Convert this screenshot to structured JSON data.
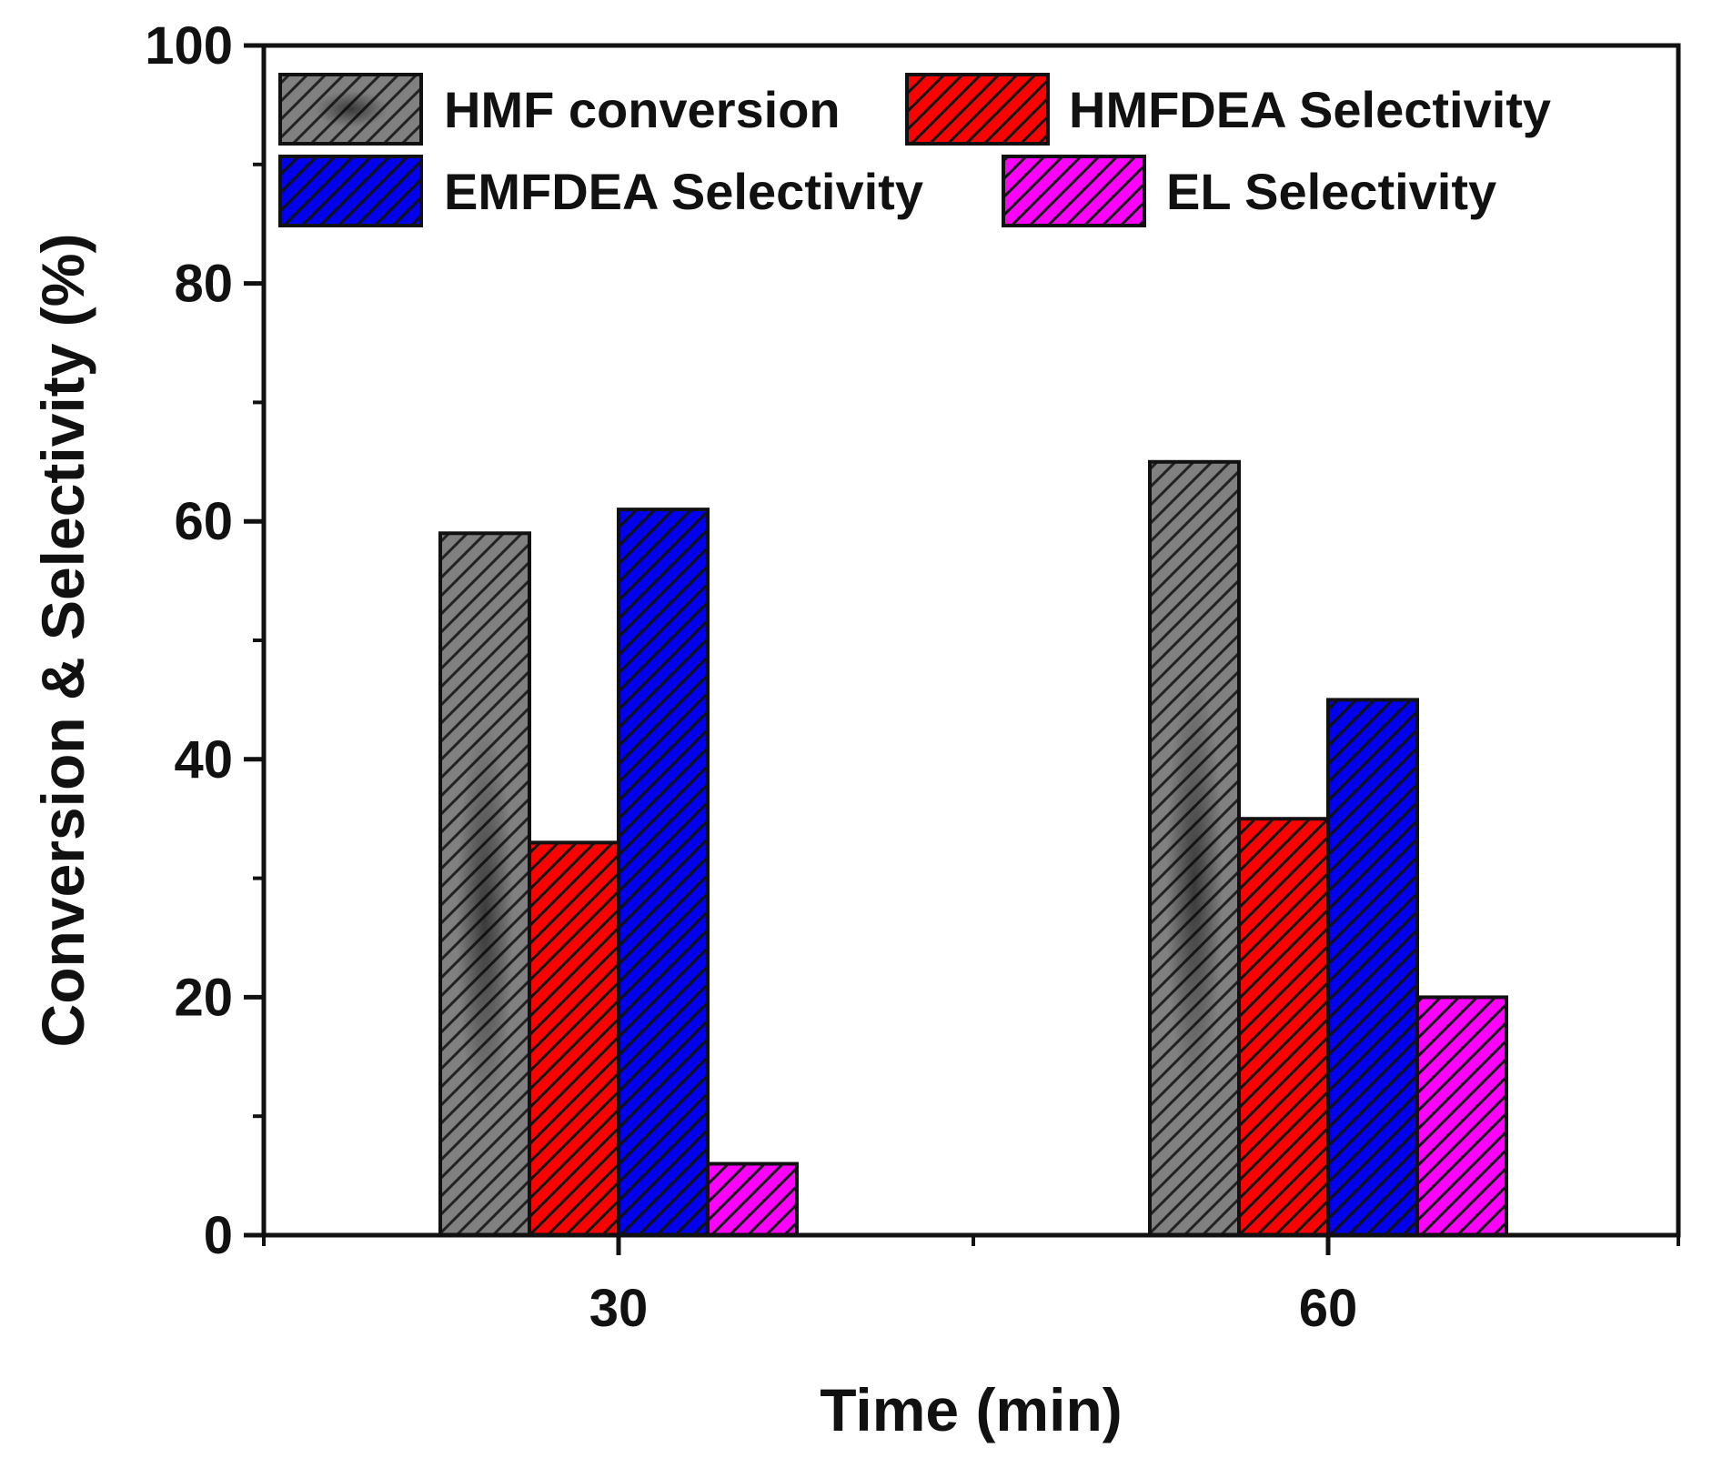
{
  "chart_data": {
    "type": "bar",
    "title": "",
    "xlabel": "Time (min)",
    "ylabel": "Conversion & Selectivity (%)",
    "categories": [
      "30",
      "60"
    ],
    "ylim": [
      0,
      100
    ],
    "yticks": [
      "0",
      "20",
      "40",
      "60",
      "80",
      "100"
    ],
    "grid": false,
    "legend_position": "top-left",
    "series": [
      {
        "name": "HMF conversion",
        "values": [
          59,
          65
        ],
        "color": "#7a7a7a",
        "hatch": "gray"
      },
      {
        "name": "HMFDEA Selectivity",
        "values": [
          33,
          35
        ],
        "color": "#ff0000",
        "hatch": "red"
      },
      {
        "name": "EMFDEA Selectivity",
        "values": [
          61,
          45
        ],
        "color": "#0000ee",
        "hatch": "blue"
      },
      {
        "name": "EL Selectivity",
        "values": [
          6,
          20
        ],
        "color": "#ff00ff",
        "hatch": "magenta"
      }
    ]
  }
}
